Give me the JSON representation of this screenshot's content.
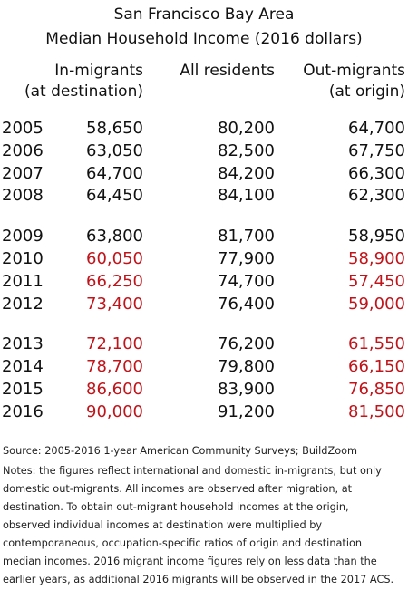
{
  "header": {
    "title_lines": [
      "San Francisco Bay Area",
      "Median Household Income (2016 dollars)"
    ]
  },
  "table": {
    "columns": [
      {
        "lines": [
          "In-migrants",
          "(at destination)"
        ]
      },
      {
        "lines": [
          "All residents"
        ]
      },
      {
        "lines": [
          "Out-migrants",
          "(at origin)"
        ]
      }
    ],
    "highlight_color": "#c0141a",
    "groups": [
      {
        "rows": [
          {
            "year": "2005",
            "cells": [
              "58,650",
              "80,200",
              "64,700"
            ],
            "highlighted": [
              false,
              false,
              false
            ]
          },
          {
            "year": "2006",
            "cells": [
              "63,050",
              "82,500",
              "67,750"
            ],
            "highlighted": [
              false,
              false,
              false
            ]
          },
          {
            "year": "2007",
            "cells": [
              "64,700",
              "84,200",
              "66,300"
            ],
            "highlighted": [
              false,
              false,
              false
            ]
          },
          {
            "year": "2008",
            "cells": [
              "64,450",
              "84,100",
              "62,300"
            ],
            "highlighted": [
              false,
              false,
              false
            ]
          }
        ]
      },
      {
        "rows": [
          {
            "year": "2009",
            "cells": [
              "63,800",
              "81,700",
              "58,950"
            ],
            "highlighted": [
              false,
              false,
              false
            ]
          },
          {
            "year": "2010",
            "cells": [
              "60,050",
              "77,900",
              "58,900"
            ],
            "highlighted": [
              true,
              false,
              true
            ]
          },
          {
            "year": "2011",
            "cells": [
              "66,250",
              "74,700",
              "57,450"
            ],
            "highlighted": [
              true,
              false,
              true
            ]
          },
          {
            "year": "2012",
            "cells": [
              "73,400",
              "76,400",
              "59,000"
            ],
            "highlighted": [
              true,
              false,
              true
            ]
          }
        ]
      },
      {
        "rows": [
          {
            "year": "2013",
            "cells": [
              "72,100",
              "76,200",
              "61,550"
            ],
            "highlighted": [
              true,
              false,
              true
            ]
          },
          {
            "year": "2014",
            "cells": [
              "78,700",
              "79,800",
              "66,150"
            ],
            "highlighted": [
              true,
              false,
              true
            ]
          },
          {
            "year": "2015",
            "cells": [
              "86,600",
              "83,900",
              "76,850"
            ],
            "highlighted": [
              true,
              false,
              true
            ]
          },
          {
            "year": "2016",
            "cells": [
              "90,000",
              "91,200",
              "81,500"
            ],
            "highlighted": [
              true,
              false,
              true
            ]
          }
        ]
      }
    ]
  },
  "footer": {
    "source": "Source: 2005-2016 1-year American Community Surveys; BuildZoom",
    "notes_lines": [
      "Notes: the figures reflect international and domestic in-migrants, but only",
      "domestic out-migrants. All incomes are observed after migration, at",
      "destination. To obtain out-migrant household incomes at the origin,",
      "observed individual incomes at destination were multiplied by",
      "contemporaneous, occupation-specific ratios of origin and destination",
      "median incomes. 2016 migrant income figures rely on less data than the",
      "earlier years, as additional 2016 migrants will be observed in the 2017 ACS."
    ]
  }
}
